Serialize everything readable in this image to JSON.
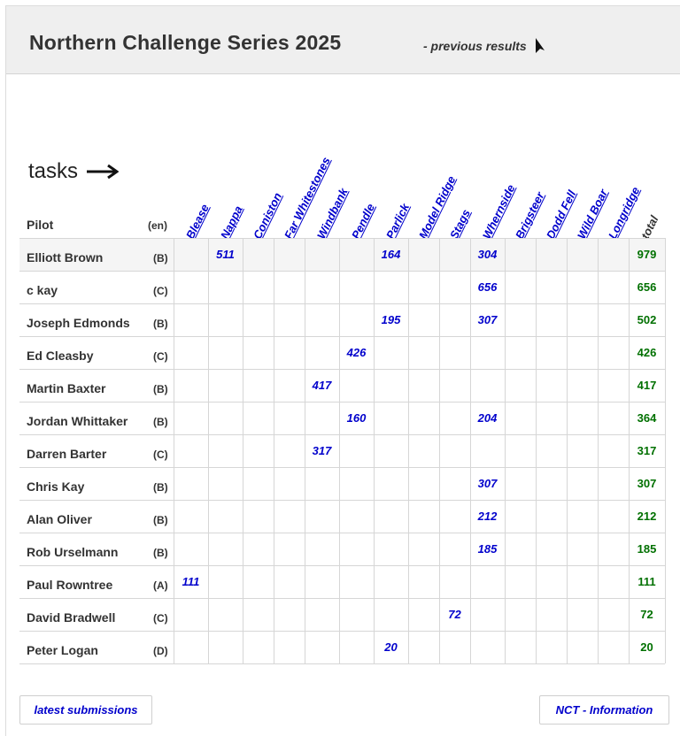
{
  "header": {
    "title": "Northern Challenge Series 2025",
    "previous_results": "- previous results"
  },
  "tasks_label": "tasks",
  "table": {
    "pilot_header": "Pilot",
    "class_header": "(en)",
    "tasks": [
      "Blease",
      "Nappa",
      "Coniston",
      "Far Whitestones",
      "Windbank",
      "Pendle",
      "Parlick",
      "Model Ridge",
      "Stags",
      "Whernside",
      "Brigsteer",
      "Dodd Fell",
      "Wild Boar",
      "Longridge"
    ],
    "total_header": "total",
    "rows": [
      {
        "name": "Elliott Brown",
        "cls": "(B)",
        "scores": [
          "",
          "511",
          "",
          "",
          "",
          "",
          "164",
          "",
          "",
          "304",
          "",
          "",
          "",
          ""
        ],
        "total": "979"
      },
      {
        "name": "c kay",
        "cls": "(C)",
        "scores": [
          "",
          "",
          "",
          "",
          "",
          "",
          "",
          "",
          "",
          "656",
          "",
          "",
          "",
          ""
        ],
        "total": "656"
      },
      {
        "name": "Joseph Edmonds",
        "cls": "(B)",
        "scores": [
          "",
          "",
          "",
          "",
          "",
          "",
          "195",
          "",
          "",
          "307",
          "",
          "",
          "",
          ""
        ],
        "total": "502"
      },
      {
        "name": "Ed Cleasby",
        "cls": "(C)",
        "scores": [
          "",
          "",
          "",
          "",
          "",
          "426",
          "",
          "",
          "",
          "",
          "",
          "",
          "",
          ""
        ],
        "total": "426"
      },
      {
        "name": "Martin Baxter",
        "cls": "(B)",
        "scores": [
          "",
          "",
          "",
          "",
          "417",
          "",
          "",
          "",
          "",
          "",
          "",
          "",
          "",
          ""
        ],
        "total": "417"
      },
      {
        "name": "Jordan Whittaker",
        "cls": "(B)",
        "scores": [
          "",
          "",
          "",
          "",
          "",
          "160",
          "",
          "",
          "",
          "204",
          "",
          "",
          "",
          ""
        ],
        "total": "364"
      },
      {
        "name": "Darren Barter",
        "cls": "(C)",
        "scores": [
          "",
          "",
          "",
          "",
          "317",
          "",
          "",
          "",
          "",
          "",
          "",
          "",
          "",
          ""
        ],
        "total": "317"
      },
      {
        "name": "Chris Kay",
        "cls": "(B)",
        "scores": [
          "",
          "",
          "",
          "",
          "",
          "",
          "",
          "",
          "",
          "307",
          "",
          "",
          "",
          ""
        ],
        "total": "307"
      },
      {
        "name": "Alan Oliver",
        "cls": "(B)",
        "scores": [
          "",
          "",
          "",
          "",
          "",
          "",
          "",
          "",
          "",
          "212",
          "",
          "",
          "",
          ""
        ],
        "total": "212"
      },
      {
        "name": "Rob Urselmann",
        "cls": "(B)",
        "scores": [
          "",
          "",
          "",
          "",
          "",
          "",
          "",
          "",
          "",
          "185",
          "",
          "",
          "",
          ""
        ],
        "total": "185"
      },
      {
        "name": "Paul Rowntree",
        "cls": "(A)",
        "scores": [
          "111",
          "",
          "",
          "",
          "",
          "",
          "",
          "",
          "",
          "",
          "",
          "",
          "",
          ""
        ],
        "total": "111"
      },
      {
        "name": "David Bradwell",
        "cls": "(C)",
        "scores": [
          "",
          "",
          "",
          "",
          "",
          "",
          "",
          "",
          "72",
          "",
          "",
          "",
          "",
          ""
        ],
        "total": "72"
      },
      {
        "name": "Peter Logan",
        "cls": "(D)",
        "scores": [
          "",
          "",
          "",
          "",
          "",
          "",
          "20",
          "",
          "",
          "",
          "",
          "",
          "",
          ""
        ],
        "total": "20"
      }
    ]
  },
  "buttons": {
    "latest_submissions": "latest submissions",
    "nct_information": "NCT - Information"
  }
}
